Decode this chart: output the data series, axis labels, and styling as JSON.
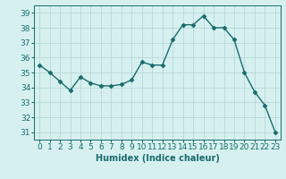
{
  "x": [
    0,
    1,
    2,
    3,
    4,
    5,
    6,
    7,
    8,
    9,
    10,
    11,
    12,
    13,
    14,
    15,
    16,
    17,
    18,
    19,
    20,
    21,
    22,
    23
  ],
  "y": [
    35.5,
    35.0,
    34.4,
    33.8,
    34.7,
    34.3,
    34.1,
    34.1,
    34.2,
    34.5,
    35.7,
    35.5,
    35.5,
    37.2,
    38.2,
    38.2,
    38.8,
    38.0,
    38.0,
    37.2,
    35.0,
    33.7,
    32.8,
    31.0
  ],
  "line_color": "#1a6b6b",
  "marker": "D",
  "marker_size": 2.5,
  "bg_color": "#d6f0f0",
  "grid_color": "#b8d8d8",
  "xlabel": "Humidex (Indice chaleur)",
  "ylim": [
    30.5,
    39.5
  ],
  "xlim": [
    -0.5,
    23.5
  ],
  "yticks": [
    31,
    32,
    33,
    34,
    35,
    36,
    37,
    38,
    39
  ],
  "xticks": [
    0,
    1,
    2,
    3,
    4,
    5,
    6,
    7,
    8,
    9,
    10,
    11,
    12,
    13,
    14,
    15,
    16,
    17,
    18,
    19,
    20,
    21,
    22,
    23
  ],
  "xlabel_fontsize": 7,
  "tick_fontsize": 6.5,
  "line_width": 1.0
}
